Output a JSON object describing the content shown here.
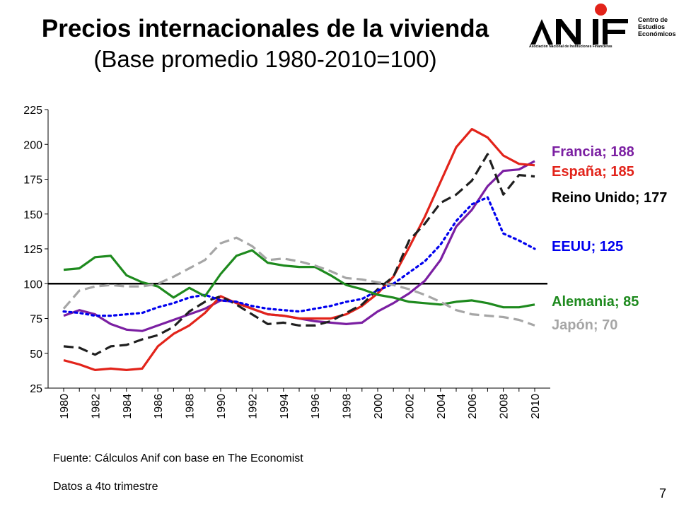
{
  "slide": {
    "title": "Precios internacionales de la vivienda",
    "subtitle": "(Base promedio 1980-2010=100)",
    "source": "Fuente: Cálculos Anif con base en The Economist",
    "note": "Datos a 4to trimestre",
    "page_number": "7"
  },
  "logo": {
    "name": "ANIF",
    "institution": "Asociación Nacional de Instituciones Financieras",
    "center_line1": "Centro de",
    "center_line2": "Estudios",
    "center_line3": "Económicos",
    "colors": {
      "mark": "#000000",
      "dot": "#e2231a"
    }
  },
  "chart_data": {
    "type": "line",
    "title": "",
    "xlabel": "",
    "ylabel": "",
    "ylim": [
      25,
      225
    ],
    "yticks": [
      25,
      50,
      75,
      100,
      125,
      150,
      175,
      200,
      225
    ],
    "xticks": [
      "1980",
      "1982",
      "1984",
      "1986",
      "1988",
      "1990",
      "1992",
      "1994",
      "1996",
      "1998",
      "2000",
      "2002",
      "2004",
      "2006",
      "2008",
      "2010"
    ],
    "x": [
      1980,
      1981,
      1982,
      1983,
      1984,
      1985,
      1986,
      1987,
      1988,
      1989,
      1990,
      1991,
      1992,
      1993,
      1994,
      1995,
      1996,
      1997,
      1998,
      1999,
      2000,
      2001,
      2002,
      2003,
      2004,
      2005,
      2006,
      2007,
      2008,
      2009,
      2010
    ],
    "grid": false,
    "reference_line": 100,
    "series": [
      {
        "name": "Francia",
        "label": "Francia; 188",
        "color": "#7b1fa2",
        "style": "solid",
        "values": [
          77,
          81,
          78,
          71,
          67,
          66,
          70,
          74,
          78,
          82,
          88,
          87,
          82,
          78,
          77,
          75,
          73,
          72,
          71,
          72,
          80,
          86,
          93,
          102,
          117,
          141,
          153,
          170,
          181,
          182,
          188
        ]
      },
      {
        "name": "España",
        "label": "España; 185",
        "color": "#e2231a",
        "style": "solid",
        "values": [
          45,
          42,
          38,
          39,
          38,
          39,
          55,
          64,
          70,
          79,
          91,
          86,
          82,
          78,
          77,
          75,
          75,
          75,
          78,
          84,
          93,
          105,
          126,
          148,
          173,
          198,
          211,
          205,
          192,
          186,
          185
        ]
      },
      {
        "name": "Reino Unido",
        "label": "Reino Unido; 177",
        "color": "#1f1f1f",
        "style": "dash",
        "values": [
          55,
          54,
          49,
          55,
          56,
          60,
          63,
          69,
          80,
          87,
          91,
          85,
          78,
          71,
          72,
          70,
          70,
          73,
          79,
          85,
          96,
          105,
          131,
          143,
          158,
          164,
          174,
          193,
          164,
          178,
          177
        ]
      },
      {
        "name": "EEUU",
        "label": "EEUU; 125",
        "color": "#0000ee",
        "style": "dot",
        "values": [
          80,
          79,
          77,
          77,
          78,
          79,
          83,
          86,
          90,
          92,
          88,
          87,
          84,
          82,
          81,
          80,
          82,
          84,
          87,
          89,
          95,
          100,
          108,
          116,
          128,
          145,
          157,
          162,
          136,
          131,
          125
        ]
      },
      {
        "name": "Alemania",
        "label": "Alemania; 85",
        "color": "#1e8a1e",
        "style": "solid",
        "values": [
          110,
          111,
          119,
          120,
          106,
          101,
          98,
          90,
          97,
          91,
          107,
          120,
          124,
          115,
          113,
          112,
          112,
          106,
          99,
          96,
          92,
          90,
          87,
          86,
          85,
          87,
          88,
          86,
          83,
          83,
          85
        ]
      },
      {
        "name": "Japón",
        "label": "Japón; 70",
        "color": "#a6a6a6",
        "style": "dash",
        "values": [
          82,
          95,
          98,
          99,
          98,
          98,
          100,
          105,
          111,
          117,
          129,
          133,
          127,
          117,
          118,
          116,
          113,
          109,
          104,
          103,
          101,
          99,
          96,
          92,
          87,
          81,
          78,
          77,
          76,
          74,
          70
        ]
      }
    ]
  }
}
